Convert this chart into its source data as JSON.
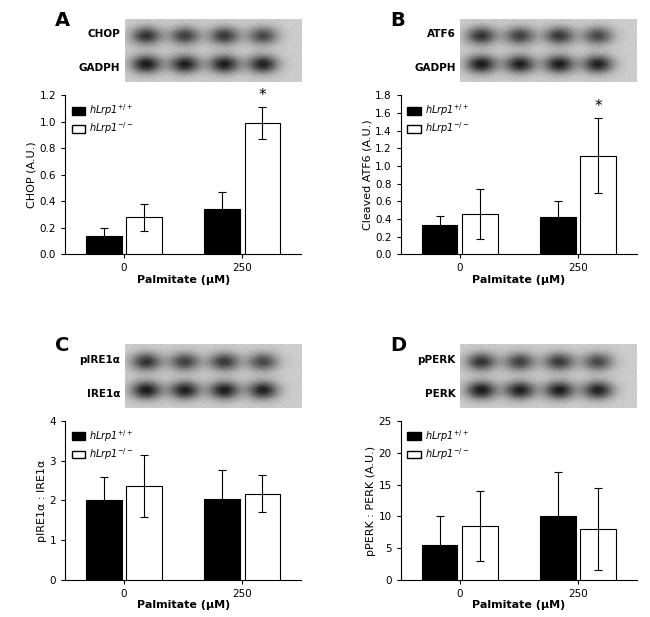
{
  "panel_A": {
    "label": "A",
    "wb_labels": [
      "CHOP",
      "GADPH"
    ],
    "ylabel": "CHOP (A.U.)",
    "xlabel": "Palmitate (μM)",
    "ylim": [
      0,
      1.2
    ],
    "yticks": [
      0.0,
      0.2,
      0.4,
      0.6,
      0.8,
      1.0,
      1.2
    ],
    "xtick_labels": [
      "0",
      "250"
    ],
    "bar_values": [
      0.14,
      0.28,
      0.34,
      0.99
    ],
    "bar_errors": [
      0.06,
      0.1,
      0.13,
      0.12
    ],
    "star_bar": 3,
    "legend_labels": [
      "hLrp1$^{+/+}$",
      "hLrp1$^{-/-}$"
    ]
  },
  "panel_B": {
    "label": "B",
    "wb_labels": [
      "ATF6",
      "GADPH"
    ],
    "ylabel": "Cleaved ATF6 (A.U.)",
    "xlabel": "Palmitate (μM)",
    "ylim": [
      0,
      1.8
    ],
    "yticks": [
      0.0,
      0.2,
      0.4,
      0.6,
      0.8,
      1.0,
      1.2,
      1.4,
      1.6,
      1.8
    ],
    "xtick_labels": [
      "0",
      "250"
    ],
    "bar_values": [
      0.33,
      0.46,
      0.42,
      1.12
    ],
    "bar_errors": [
      0.11,
      0.28,
      0.18,
      0.42
    ],
    "star_bar": 3,
    "legend_labels": [
      "hLrp1$^{+/+}$",
      "hLrp1$^{-/-}$"
    ]
  },
  "panel_C": {
    "label": "C",
    "wb_labels": [
      "pIRE1α",
      "IRE1α"
    ],
    "ylabel": "pIRE1α : IRE1α",
    "xlabel": "Palmitate (μM)",
    "ylim": [
      0,
      4
    ],
    "yticks": [
      0,
      1,
      2,
      3,
      4
    ],
    "xtick_labels": [
      "0",
      "250"
    ],
    "bar_values": [
      2.0,
      2.37,
      2.05,
      2.17
    ],
    "bar_errors": [
      0.6,
      0.78,
      0.72,
      0.47
    ],
    "star_bar": -1,
    "legend_labels": [
      "hLrp1$^{+/+}$",
      "hLrp1$^{-/-}$"
    ]
  },
  "panel_D": {
    "label": "D",
    "wb_labels": [
      "pPERK",
      "PERK"
    ],
    "ylabel": "pPERK : PERK (A.U.)",
    "xlabel": "Palmitate (μM)",
    "ylim": [
      0,
      25
    ],
    "yticks": [
      0,
      5,
      10,
      15,
      20,
      25
    ],
    "xtick_labels": [
      "0",
      "250"
    ],
    "bar_values": [
      5.5,
      8.5,
      10.0,
      8.0
    ],
    "bar_errors": [
      4.5,
      5.5,
      7.0,
      6.5
    ],
    "star_bar": -1,
    "legend_labels": [
      "hLrp1$^{+/+}$",
      "hLrp1$^{-/-}$"
    ]
  },
  "background_color": "#ffffff",
  "bar_width": 0.3,
  "bar_colors": [
    "black",
    "white"
  ],
  "bar_edgecolor": "black",
  "capsize": 3,
  "fontsize_label": 8,
  "fontsize_tick": 7.5,
  "fontsize_panel": 14,
  "fontsize_wblabel": 7.5
}
